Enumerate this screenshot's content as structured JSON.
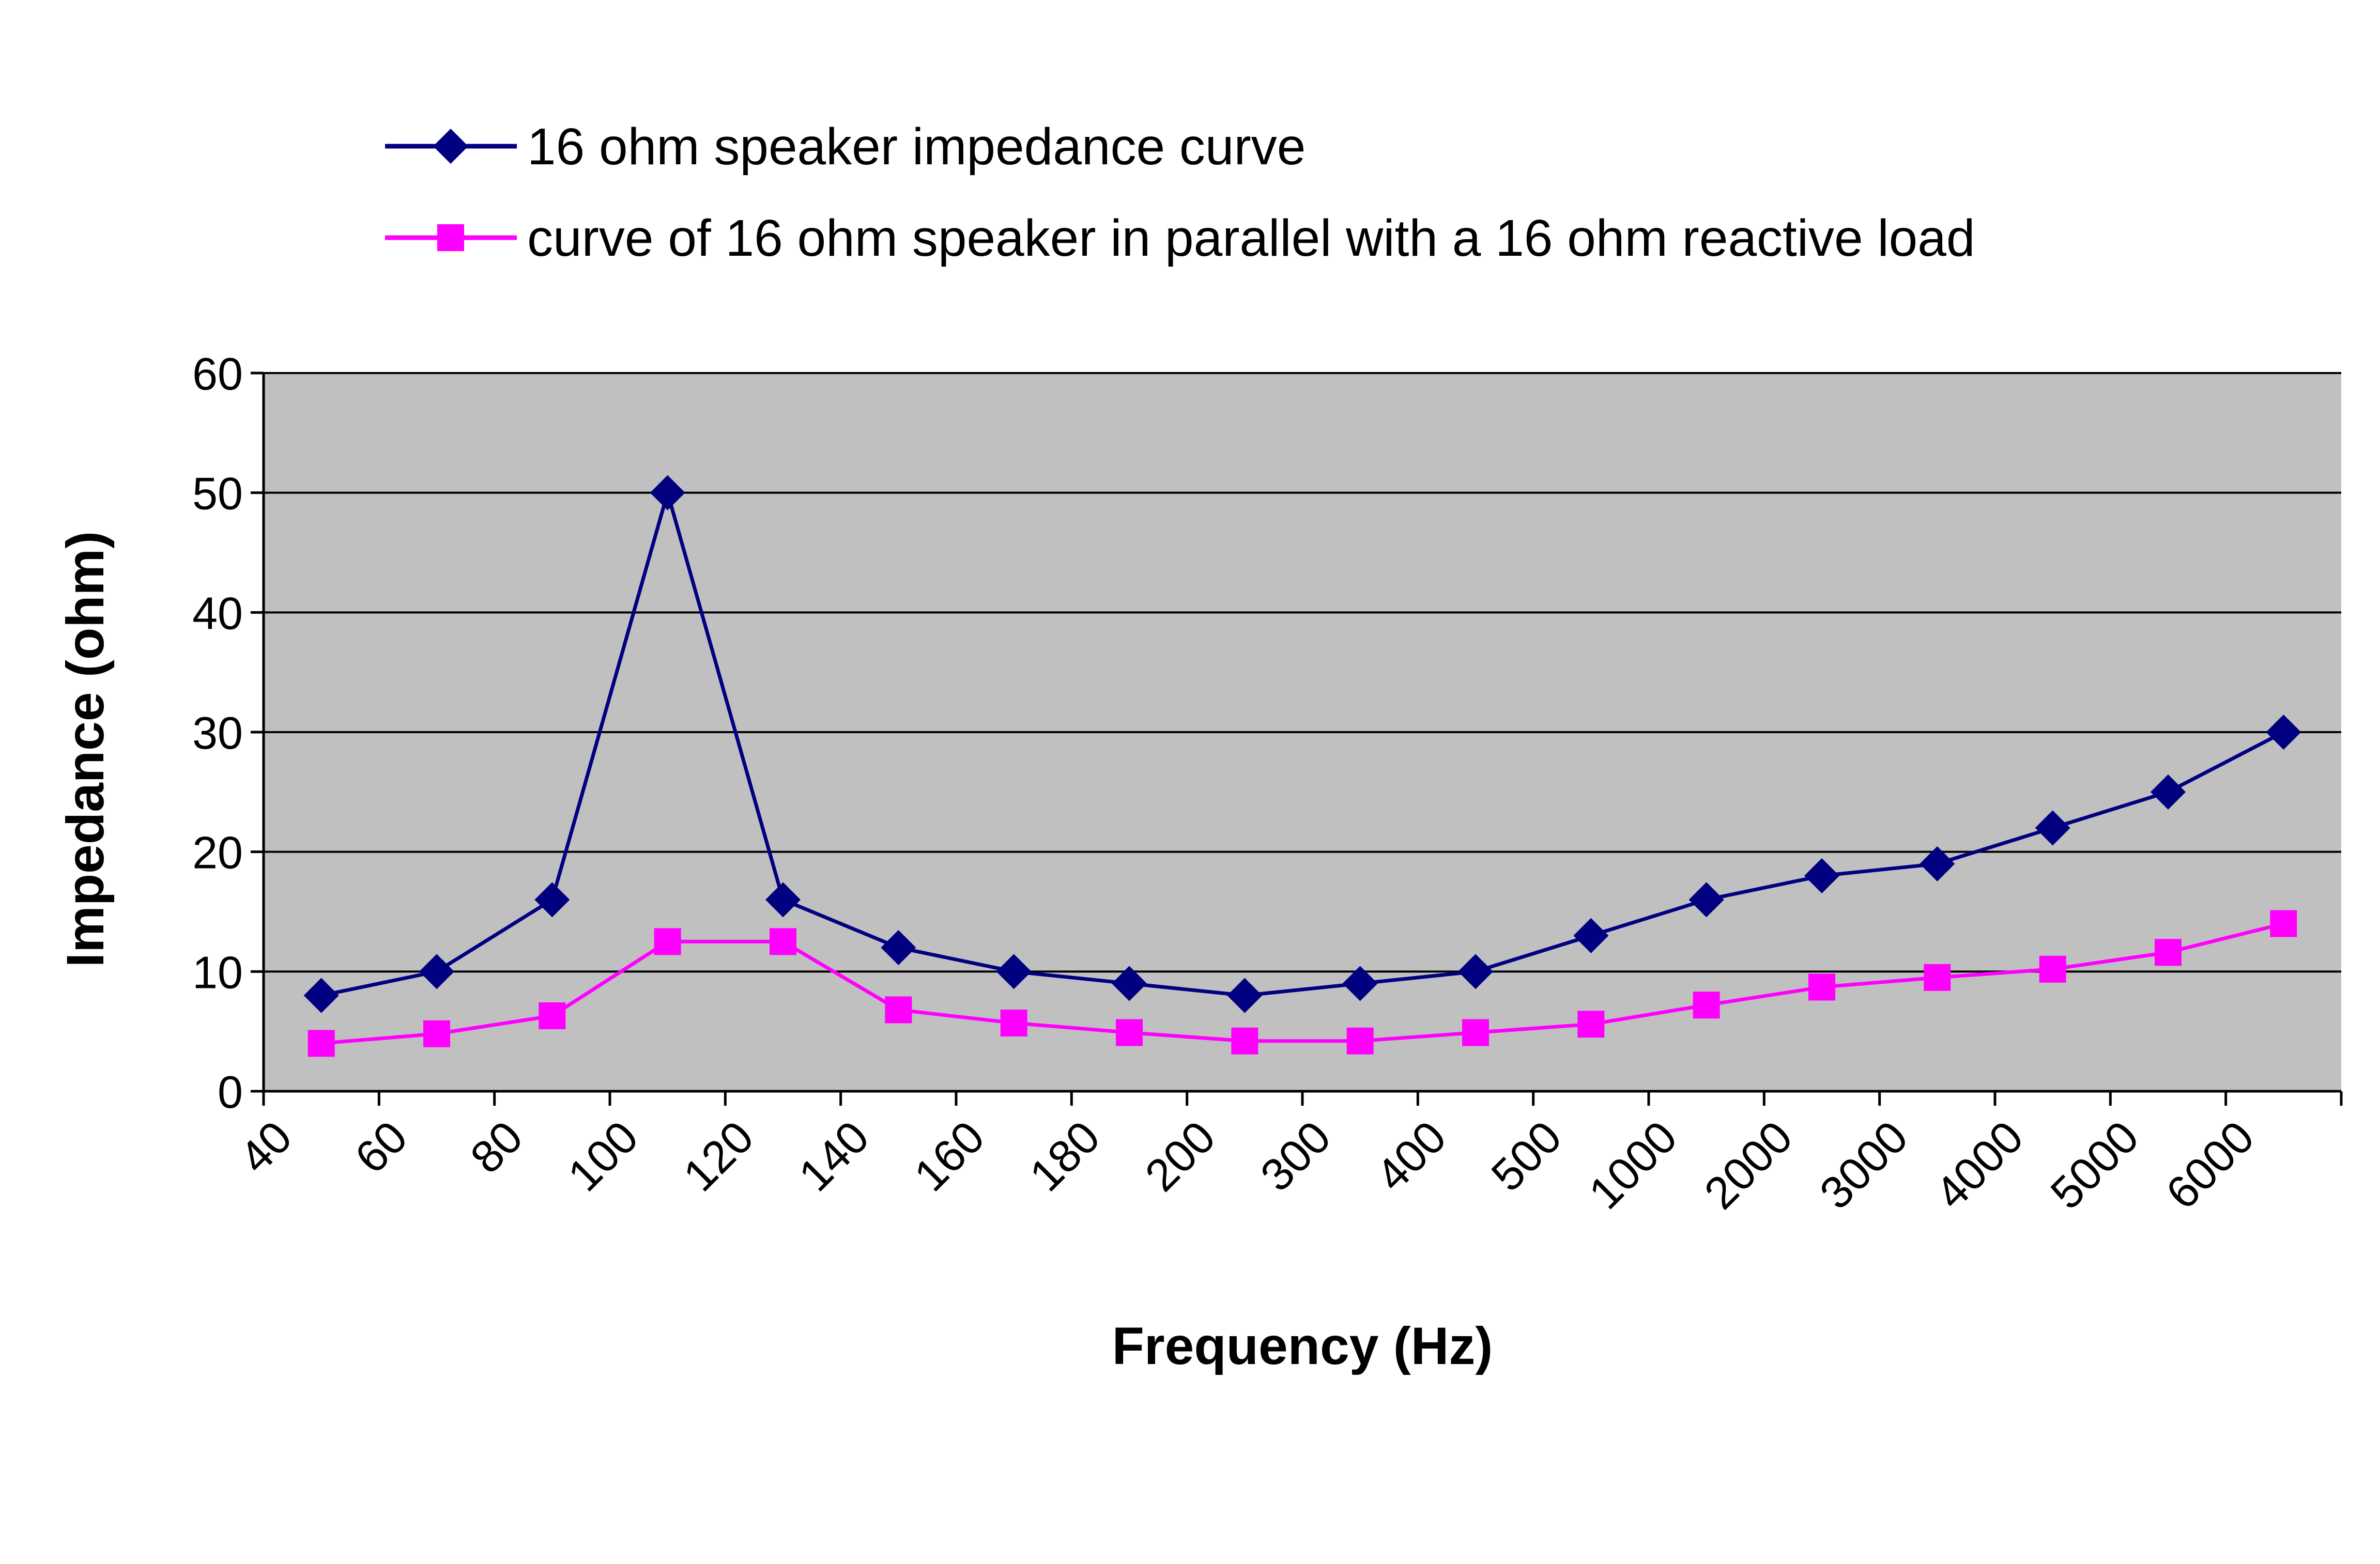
{
  "chart_data": {
    "type": "line",
    "categories": [
      "40",
      "60",
      "80",
      "100",
      "120",
      "140",
      "160",
      "180",
      "200",
      "300",
      "400",
      "500",
      "1000",
      "2000",
      "3000",
      "4000",
      "5000",
      "6000"
    ],
    "series": [
      {
        "name": "16 ohm speaker impedance curve",
        "color": "#000080",
        "marker": "diamond",
        "values": [
          8,
          10,
          16,
          50,
          16,
          12,
          10,
          9,
          8,
          9,
          10,
          13,
          16,
          18,
          19,
          22,
          25,
          30
        ]
      },
      {
        "name": "curve of 16 ohm speaker in parallel with a 16 ohm reactive load",
        "color": "#FF00FF",
        "marker": "square",
        "values": [
          4,
          4.8,
          6.3,
          12.5,
          12.5,
          6.8,
          5.7,
          4.9,
          4.2,
          4.2,
          4.9,
          5.6,
          7.2,
          8.7,
          9.5,
          10.2,
          11.6,
          14
        ]
      }
    ],
    "title": "",
    "xlabel": "Frequency (Hz)",
    "ylabel": "Impedance (ohm)",
    "ylim": [
      0,
      60
    ],
    "yticks": [
      "0",
      "10",
      "20",
      "30",
      "40",
      "50",
      "60"
    ],
    "grid": true,
    "legend_position": "top",
    "plot_background": "#C0C0C0"
  }
}
